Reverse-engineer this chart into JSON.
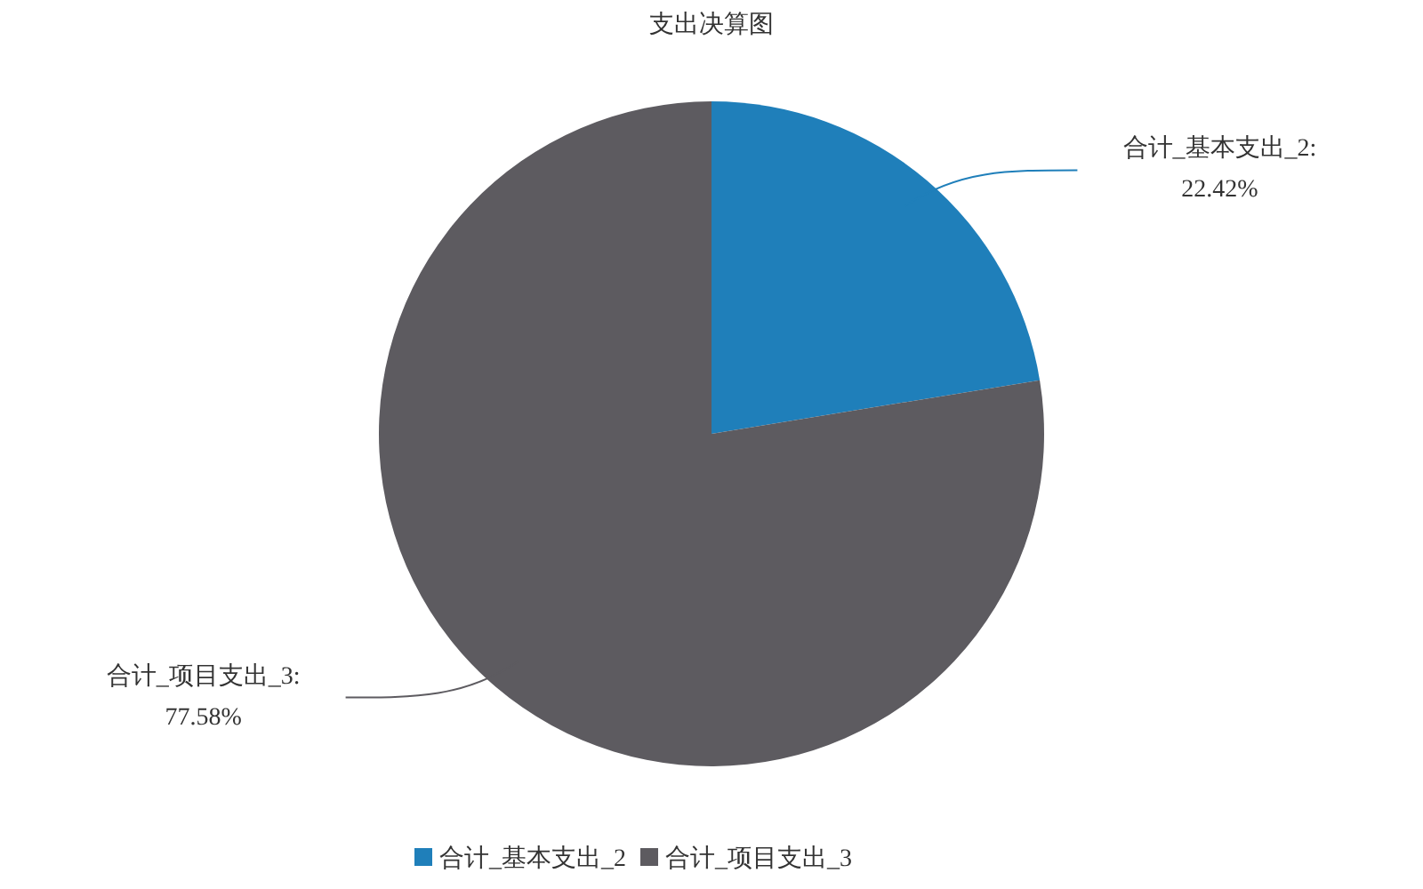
{
  "chart_data": {
    "type": "pie",
    "title": "支出决算图",
    "categories": [
      "合计_基本支出_2",
      "合计_项目支出_3"
    ],
    "values": [
      22.42,
      77.58
    ],
    "colors": [
      "#1f7fba",
      "#5d5b60"
    ],
    "value_labels": [
      "合计_基本支出_2:\n22.42%",
      "合计_项目支出_3:\n77.58%"
    ],
    "legend": "bottom"
  }
}
